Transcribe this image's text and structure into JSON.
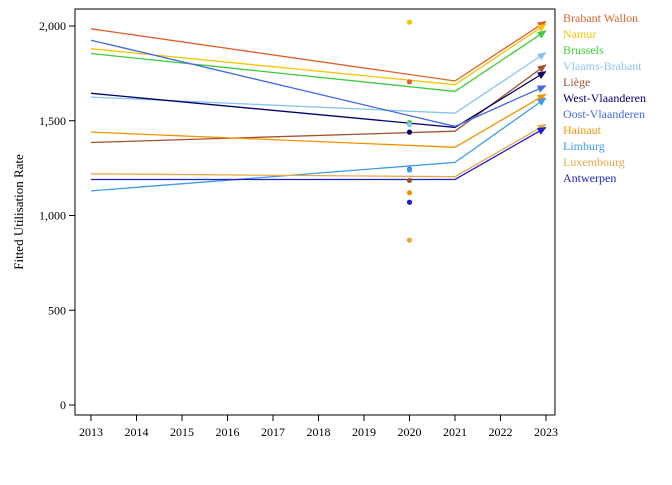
{
  "chart_data": {
    "type": "line",
    "ylabel": "Fitted Utilisation Rate",
    "xlabel": "",
    "xlim": [
      2013,
      2023
    ],
    "ylim": [
      0,
      2100
    ],
    "x_ticks": [
      "2013",
      "2014",
      "2015",
      "2016",
      "2017",
      "2018",
      "2019",
      "2020",
      "2021",
      "2022",
      "2023"
    ],
    "y_ticks": [
      {
        "value": 0,
        "label": "0"
      },
      {
        "value": 500,
        "label": "500"
      },
      {
        "value": 1000,
        "label": "1,000"
      },
      {
        "value": 1500,
        "label": "1,500"
      },
      {
        "value": 2000,
        "label": "2,000"
      }
    ],
    "grid": false,
    "legend_position": "right",
    "series": [
      {
        "name": "Brabant Wallon",
        "color": "#d9622b",
        "x": [
          2013,
          2021,
          2023
        ],
        "values": [
          1985,
          1710,
          2025
        ],
        "point_2020": 1705
      },
      {
        "name": "Namur",
        "color": "#f2c500",
        "x": [
          2013,
          2021,
          2023
        ],
        "values": [
          1880,
          1690,
          2010
        ],
        "point_2020": 2020
      },
      {
        "name": "Brussels",
        "color": "#3ccc3c",
        "x": [
          2013,
          2021,
          2023
        ],
        "values": [
          1855,
          1655,
          1975
        ],
        "point_2020": 1490
      },
      {
        "name": "Vlaams-Brabant",
        "color": "#86c5f0",
        "x": [
          2013,
          2021,
          2023
        ],
        "values": [
          1625,
          1540,
          1860
        ],
        "point_2020": 1480
      },
      {
        "name": "Liège",
        "color": "#a0522d",
        "x": [
          2013,
          2021,
          2023
        ],
        "values": [
          1385,
          1445,
          1795
        ],
        "point_2020": 1185
      },
      {
        "name": "West-Vlaanderen",
        "color": "#00006e",
        "x": [
          2013,
          2021,
          2023
        ],
        "values": [
          1645,
          1465,
          1760
        ],
        "point_2020": 1440
      },
      {
        "name": "Oost-Vlaanderen",
        "color": "#4169e1",
        "x": [
          2013,
          2021,
          2023
        ],
        "values": [
          1925,
          1470,
          1685
        ],
        "point_2020": 1245
      },
      {
        "name": "Hainaut",
        "color": "#f39200",
        "x": [
          2013,
          2021,
          2023
        ],
        "values": [
          1440,
          1360,
          1640
        ],
        "point_2020": 1120
      },
      {
        "name": "Limburg",
        "color": "#3d9be9",
        "x": [
          2013,
          2021,
          2023
        ],
        "values": [
          1130,
          1280,
          1620
        ],
        "point_2020": 1240
      },
      {
        "name": "Luxembourg",
        "color": "#e8a84a",
        "x": [
          2013,
          2021,
          2023
        ],
        "values": [
          1220,
          1205,
          1480
        ],
        "point_2020": 870
      },
      {
        "name": "Antwerpen",
        "color": "#1f1fc8",
        "x": [
          2013,
          2021,
          2023
        ],
        "values": [
          1190,
          1190,
          1465
        ],
        "point_2020": 1070
      }
    ]
  }
}
